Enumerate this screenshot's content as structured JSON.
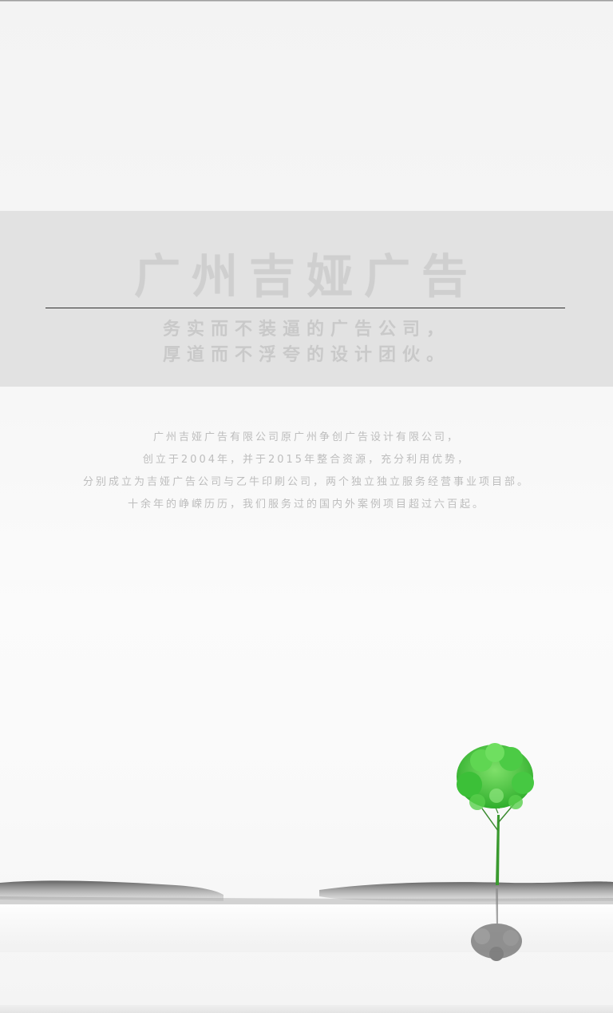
{
  "hero": {
    "title": "广州吉娅广告",
    "slogan_line1": "务实而不装逼的广告公司，",
    "slogan_line2": "厚道而不浮夸的设计团伙。"
  },
  "intro": {
    "lines": [
      "广州吉娅广告有限公司原广州争创广告设计有限公司，",
      "创立于2004年，并于2015年整合资源，充分利用优势，",
      "分别成立为吉娅广告公司与乙牛印刷公司，两个独立独立服务经营事业项目部。",
      "十余年的峥嵘历历，我们服务过的国内外案例项目超过六百起。"
    ]
  },
  "colors": {
    "band": "#e2e2e2",
    "title": "#cfcfcf",
    "divider": "#2e2e2e",
    "tree_green": "#3fbf3a",
    "ink": "#6b6b6b"
  },
  "icons": {
    "tree": "tree-illustration",
    "shore": "ink-shoreline-illustration"
  }
}
